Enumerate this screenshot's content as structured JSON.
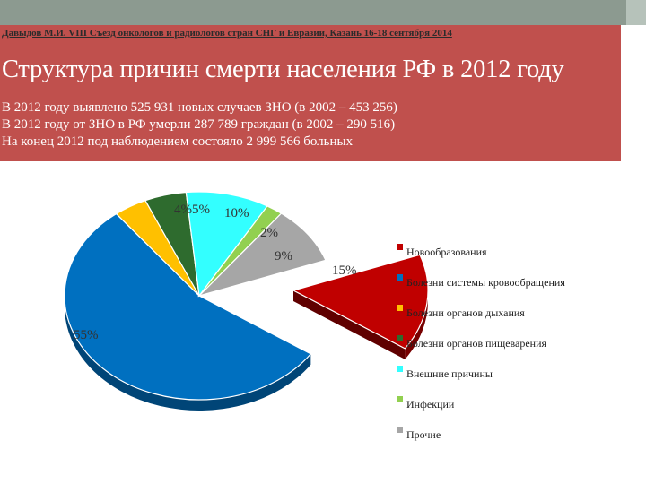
{
  "header": {
    "conference": "Давыдов М.И. VIII Съезд онкологов и радиологов стран СНГ и Евразии, Казань 16-18 сентября 2014",
    "title": "Структура причин смерти населения РФ в 2012 году",
    "facts": [
      "В 2012 году выявлено 525 931 новых случаев ЗНО (в 2002 – 453 256)",
      "В 2012 году от ЗНО  в РФ умерли 287 789 граждан (в 2002 – 290 516)",
      "На конец 2012 под наблюдением состояло 2 999 566 больных"
    ]
  },
  "colors": {
    "header_bg": "#c0504d",
    "topbar": "#8c9a90"
  },
  "chart_data": {
    "type": "pie",
    "exploded": "Новообразования",
    "legend_position": "right",
    "series": [
      {
        "name": "Новообразования",
        "value": 15,
        "label": "15%",
        "color": "#c00000"
      },
      {
        "name": "Болезни системы кровообращения",
        "value": 55,
        "label": "55%",
        "color": "#0070c0"
      },
      {
        "name": "Болезни органов дыхания",
        "value": 4,
        "label": "4%",
        "color": "#ffc000"
      },
      {
        "name": "Болезни органов пищеварения",
        "value": 5,
        "label": "5%",
        "color": "#2e6b2e"
      },
      {
        "name": "Внешние причины",
        "value": 10,
        "label": "10%",
        "color": "#33ffff"
      },
      {
        "name": "Инфекции",
        "value": 2,
        "label": "2%",
        "color": "#92d050"
      },
      {
        "name": "Прочие",
        "value": 9,
        "label": "9%",
        "color": "#a6a6a6"
      }
    ]
  }
}
